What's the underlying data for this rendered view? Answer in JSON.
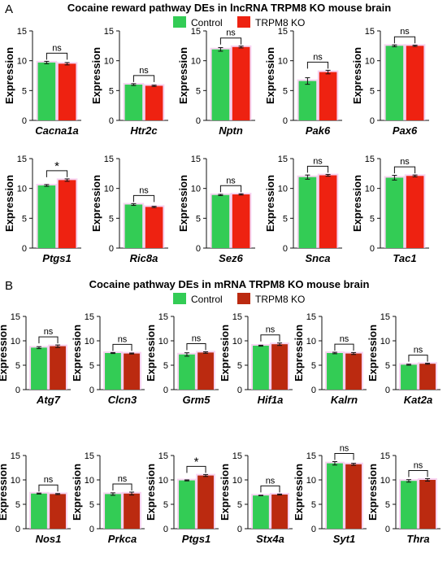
{
  "panels": [
    {
      "letter": "A",
      "title": "Cocaine reward pathway DEs in lncRNA TRPM8 KO mouse brain",
      "legend": [
        {
          "label": "Control",
          "color": "#33cc55"
        },
        {
          "label": "TRPM8 KO",
          "color": "#ee2211"
        }
      ]
    },
    {
      "letter": "B",
      "title": "Cocaine pathway DEs in mRNA TRPM8 KO mouse brain",
      "legend": [
        {
          "label": "Control",
          "color": "#33cc55"
        },
        {
          "label": "TRPM8 KO",
          "color": "#bb2a10"
        }
      ]
    }
  ],
  "chart_data": [
    {
      "panel": "A",
      "type": "bar",
      "gene": "Cacna1a",
      "categories": [
        "Control",
        "TRPM8 KO"
      ],
      "values": [
        9.7,
        9.5
      ],
      "errors": [
        0.2,
        0.2
      ],
      "sig": "ns",
      "ylabel": "Expression",
      "ylim": [
        0,
        15
      ],
      "yticks": [
        0,
        5,
        10,
        15
      ]
    },
    {
      "panel": "A",
      "type": "bar",
      "gene": "Htr2c",
      "categories": [
        "Control",
        "TRPM8 KO"
      ],
      "values": [
        6.0,
        5.8
      ],
      "errors": [
        0.15,
        0.1
      ],
      "sig": "ns",
      "ylabel": "Expression",
      "ylim": [
        0,
        15
      ],
      "yticks": [
        0,
        5,
        10,
        15
      ]
    },
    {
      "panel": "A",
      "type": "bar",
      "gene": "Nptn",
      "categories": [
        "Control",
        "TRPM8 KO"
      ],
      "values": [
        11.9,
        12.3
      ],
      "errors": [
        0.3,
        0.15
      ],
      "sig": "ns",
      "ylabel": "Expression",
      "ylim": [
        0,
        15
      ],
      "yticks": [
        0,
        5,
        10,
        15
      ]
    },
    {
      "panel": "A",
      "type": "bar",
      "gene": "Pak6",
      "categories": [
        "Control",
        "TRPM8 KO"
      ],
      "values": [
        6.6,
        8.1
      ],
      "errors": [
        0.55,
        0.3
      ],
      "sig": "ns",
      "ylabel": "Expression",
      "ylim": [
        0,
        15
      ],
      "yticks": [
        0,
        5,
        10,
        15
      ]
    },
    {
      "panel": "A",
      "type": "bar",
      "gene": "Pax6",
      "categories": [
        "Control",
        "TRPM8 KO"
      ],
      "values": [
        12.5,
        12.5
      ],
      "errors": [
        0.15,
        0.1
      ],
      "sig": "ns",
      "ylabel": "Expression",
      "ylim": [
        0,
        15
      ],
      "yticks": [
        0,
        5,
        10,
        15
      ]
    },
    {
      "panel": "A",
      "type": "bar",
      "gene": "Ptgs1",
      "categories": [
        "Control",
        "TRPM8 KO"
      ],
      "values": [
        10.5,
        11.4
      ],
      "errors": [
        0.15,
        0.2
      ],
      "sig": "*",
      "ylabel": "Expression",
      "ylim": [
        0,
        15
      ],
      "yticks": [
        0,
        5,
        10,
        15
      ]
    },
    {
      "panel": "A",
      "type": "bar",
      "gene": "Ric8a",
      "categories": [
        "Control",
        "TRPM8 KO"
      ],
      "values": [
        7.3,
        6.9
      ],
      "errors": [
        0.15,
        0.1
      ],
      "sig": "ns",
      "ylabel": "Expression",
      "ylim": [
        0,
        15
      ],
      "yticks": [
        0,
        5,
        10,
        15
      ]
    },
    {
      "panel": "A",
      "type": "bar",
      "gene": "Sez6",
      "categories": [
        "Control",
        "TRPM8 KO"
      ],
      "values": [
        8.9,
        9.0
      ],
      "errors": [
        0.1,
        0.1
      ],
      "sig": "ns",
      "ylabel": "Expression",
      "ylim": [
        0,
        15
      ],
      "yticks": [
        0,
        5,
        10,
        15
      ]
    },
    {
      "panel": "A",
      "type": "bar",
      "gene": "Snca",
      "categories": [
        "Control",
        "TRPM8 KO"
      ],
      "values": [
        11.9,
        12.2
      ],
      "errors": [
        0.35,
        0.15
      ],
      "sig": "ns",
      "ylabel": "Expression",
      "ylim": [
        0,
        15
      ],
      "yticks": [
        0,
        5,
        10,
        15
      ]
    },
    {
      "panel": "A",
      "type": "bar",
      "gene": "Tac1",
      "categories": [
        "Control",
        "TRPM8 KO"
      ],
      "values": [
        11.8,
        12.1
      ],
      "errors": [
        0.4,
        0.15
      ],
      "sig": "ns",
      "ylabel": "Expression",
      "ylim": [
        0,
        15
      ],
      "yticks": [
        0,
        5,
        10,
        15
      ]
    },
    {
      "panel": "B",
      "type": "bar",
      "gene": "Atg7",
      "categories": [
        "Control",
        "TRPM8 KO"
      ],
      "values": [
        8.6,
        8.9
      ],
      "errors": [
        0.2,
        0.25
      ],
      "sig": "ns",
      "ylabel": "Expression",
      "ylim": [
        0,
        15
      ],
      "yticks": [
        0,
        5,
        10,
        15
      ]
    },
    {
      "panel": "B",
      "type": "bar",
      "gene": "Clcn3",
      "categories": [
        "Control",
        "TRPM8 KO"
      ],
      "values": [
        7.5,
        7.4
      ],
      "errors": [
        0.1,
        0.1
      ],
      "sig": "ns",
      "ylabel": "Expression",
      "ylim": [
        0,
        15
      ],
      "yticks": [
        0,
        5,
        10,
        15
      ]
    },
    {
      "panel": "B",
      "type": "bar",
      "gene": "Grm5",
      "categories": [
        "Control",
        "TRPM8 KO"
      ],
      "values": [
        7.2,
        7.6
      ],
      "errors": [
        0.35,
        0.15
      ],
      "sig": "ns",
      "ylabel": "Expression",
      "ylim": [
        0,
        15
      ],
      "yticks": [
        0,
        5,
        10,
        15
      ]
    },
    {
      "panel": "B",
      "type": "bar",
      "gene": "Hif1a",
      "categories": [
        "Control",
        "TRPM8 KO"
      ],
      "values": [
        9.0,
        9.3
      ],
      "errors": [
        0.1,
        0.25
      ],
      "sig": "ns",
      "ylabel": "Expression",
      "ylim": [
        0,
        15
      ],
      "yticks": [
        0,
        5,
        10,
        15
      ]
    },
    {
      "panel": "B",
      "type": "bar",
      "gene": "Kalrn",
      "categories": [
        "Control",
        "TRPM8 KO"
      ],
      "values": [
        7.5,
        7.4
      ],
      "errors": [
        0.15,
        0.2
      ],
      "sig": "ns",
      "ylabel": "Expression",
      "ylim": [
        0,
        15
      ],
      "yticks": [
        0,
        5,
        10,
        15
      ]
    },
    {
      "panel": "B",
      "type": "bar",
      "gene": "Kat2a",
      "categories": [
        "Control",
        "TRPM8 KO"
      ],
      "values": [
        5.1,
        5.3
      ],
      "errors": [
        0.1,
        0.1
      ],
      "sig": "ns",
      "ylabel": "Expression",
      "ylim": [
        0,
        15
      ],
      "yticks": [
        0,
        5,
        10,
        15
      ]
    },
    {
      "panel": "B",
      "type": "bar",
      "gene": "Nos1",
      "categories": [
        "Control",
        "TRPM8 KO"
      ],
      "values": [
        7.2,
        7.1
      ],
      "errors": [
        0.1,
        0.1
      ],
      "sig": "ns",
      "ylabel": "Expression",
      "ylim": [
        0,
        15
      ],
      "yticks": [
        0,
        5,
        10,
        15
      ]
    },
    {
      "panel": "B",
      "type": "bar",
      "gene": "Prkca",
      "categories": [
        "Control",
        "TRPM8 KO"
      ],
      "values": [
        7.1,
        7.2
      ],
      "errors": [
        0.25,
        0.3
      ],
      "sig": "ns",
      "ylabel": "Expression",
      "ylim": [
        0,
        15
      ],
      "yticks": [
        0,
        5,
        10,
        15
      ]
    },
    {
      "panel": "B",
      "type": "bar",
      "gene": "Ptgs1",
      "categories": [
        "Control",
        "TRPM8 KO"
      ],
      "values": [
        9.9,
        10.9
      ],
      "errors": [
        0.1,
        0.2
      ],
      "sig": "*",
      "ylabel": "Expression",
      "ylim": [
        0,
        15
      ],
      "yticks": [
        0,
        5,
        10,
        15
      ]
    },
    {
      "panel": "B",
      "type": "bar",
      "gene": "Stx4a",
      "categories": [
        "Control",
        "TRPM8 KO"
      ],
      "values": [
        6.8,
        7.0
      ],
      "errors": [
        0.05,
        0.1
      ],
      "sig": "ns",
      "ylabel": "Expression",
      "ylim": [
        0,
        15
      ],
      "yticks": [
        0,
        5,
        10,
        15
      ]
    },
    {
      "panel": "B",
      "type": "bar",
      "gene": "Syt1",
      "categories": [
        "Control",
        "TRPM8 KO"
      ],
      "values": [
        13.4,
        13.2
      ],
      "errors": [
        0.35,
        0.2
      ],
      "sig": "ns",
      "ylabel": "Expression",
      "ylim": [
        0,
        15
      ],
      "yticks": [
        0,
        5,
        10,
        15
      ]
    },
    {
      "panel": "B",
      "type": "bar",
      "gene": "Thra",
      "categories": [
        "Control",
        "TRPM8 KO"
      ],
      "values": [
        9.8,
        10.0
      ],
      "errors": [
        0.25,
        0.25
      ],
      "sig": "ns",
      "ylabel": "Expression",
      "ylim": [
        0,
        15
      ],
      "yticks": [
        0,
        5,
        10,
        15
      ]
    }
  ]
}
